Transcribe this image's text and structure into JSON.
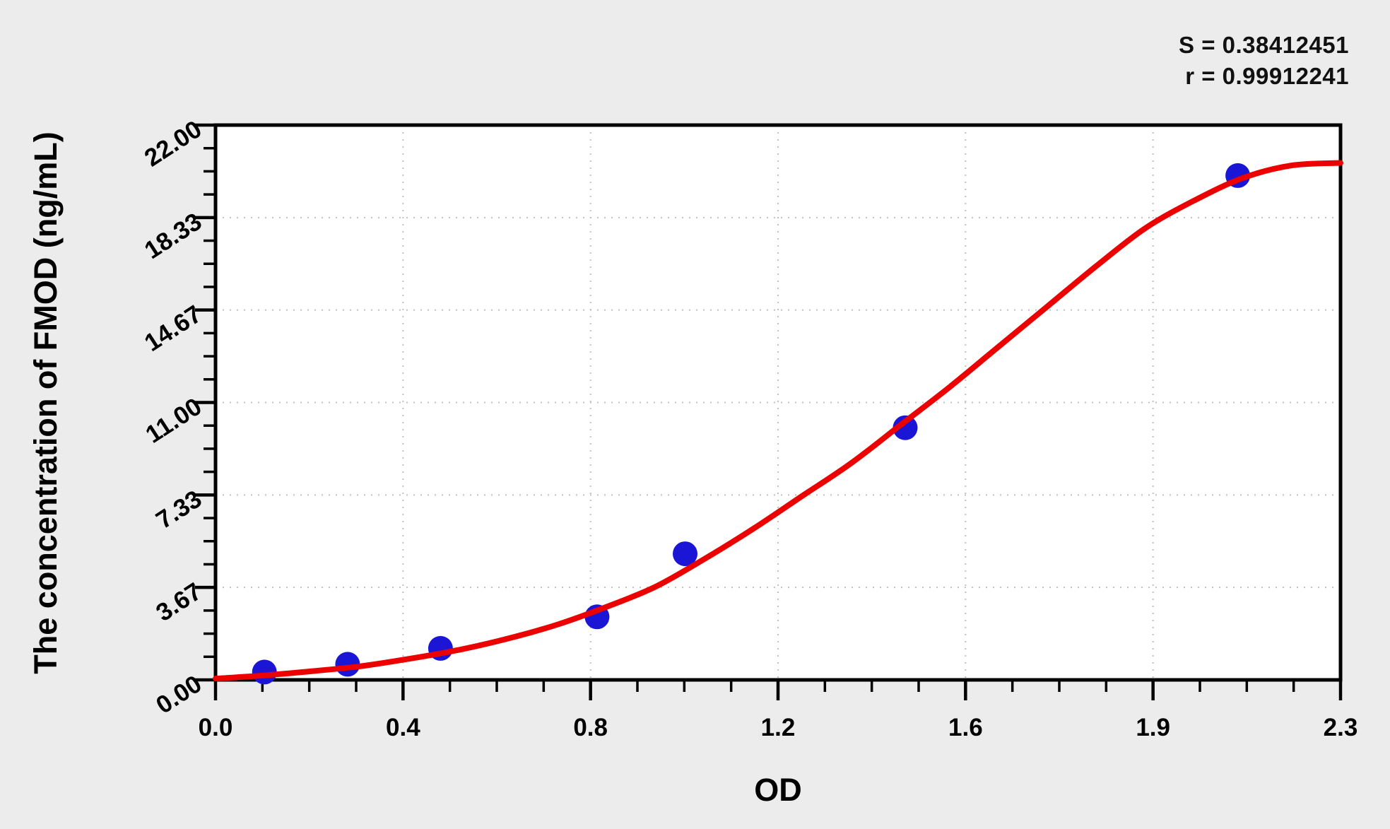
{
  "stats": {
    "s": "S = 0.38412451",
    "r": "r = 0.99912241"
  },
  "chart_data": {
    "type": "scatter",
    "title": "",
    "xlabel": "OD",
    "ylabel": "The concentration of FMOD (ng/mL)",
    "xlim": [
      0,
      2.3
    ],
    "ylim": [
      0,
      22
    ],
    "grid": true,
    "legend_position": "none",
    "x_ticks": {
      "labels": [
        "0.0",
        "0.4",
        "0.8",
        "1.2",
        "1.6",
        "1.9",
        "2.3"
      ],
      "minor_per_interval": 3
    },
    "y_ticks": {
      "labels": [
        "0.00",
        "3.67",
        "7.33",
        "11.00",
        "14.67",
        "18.33",
        "22.00"
      ],
      "minor_per_interval": 3
    },
    "fit_stats": {
      "S": "0.38412451",
      "r": "0.99912241"
    },
    "series": [
      {
        "name": "standard-points",
        "type": "scatter",
        "marker": "circle",
        "color": "#1b16d6",
        "x": [
          0.1,
          0.27,
          0.46,
          0.78,
          0.96,
          1.41,
          2.09
        ],
        "y": [
          0.31,
          0.62,
          1.25,
          2.5,
          5.0,
          10.0,
          20.0
        ]
      },
      {
        "name": "fitted-curve",
        "type": "line",
        "color": "#ec0000",
        "points": [
          [
            0.0,
            0.05
          ],
          [
            0.1,
            0.18
          ],
          [
            0.2,
            0.35
          ],
          [
            0.3,
            0.55
          ],
          [
            0.4,
            0.85
          ],
          [
            0.5,
            1.2
          ],
          [
            0.6,
            1.65
          ],
          [
            0.7,
            2.2
          ],
          [
            0.8,
            2.9
          ],
          [
            0.9,
            3.7
          ],
          [
            1.0,
            4.8
          ],
          [
            1.1,
            6.0
          ],
          [
            1.2,
            7.3
          ],
          [
            1.3,
            8.6
          ],
          [
            1.4,
            10.1
          ],
          [
            1.5,
            11.6
          ],
          [
            1.6,
            13.2
          ],
          [
            1.7,
            14.8
          ],
          [
            1.8,
            16.4
          ],
          [
            1.9,
            17.9
          ],
          [
            2.0,
            19.0
          ],
          [
            2.1,
            19.9
          ],
          [
            2.2,
            20.4
          ],
          [
            2.3,
            20.5
          ]
        ]
      }
    ],
    "colors": {
      "background": "#ececec",
      "plot_background": "#ffffff",
      "axis": "#000000",
      "grid": "#c0c0c0"
    }
  }
}
